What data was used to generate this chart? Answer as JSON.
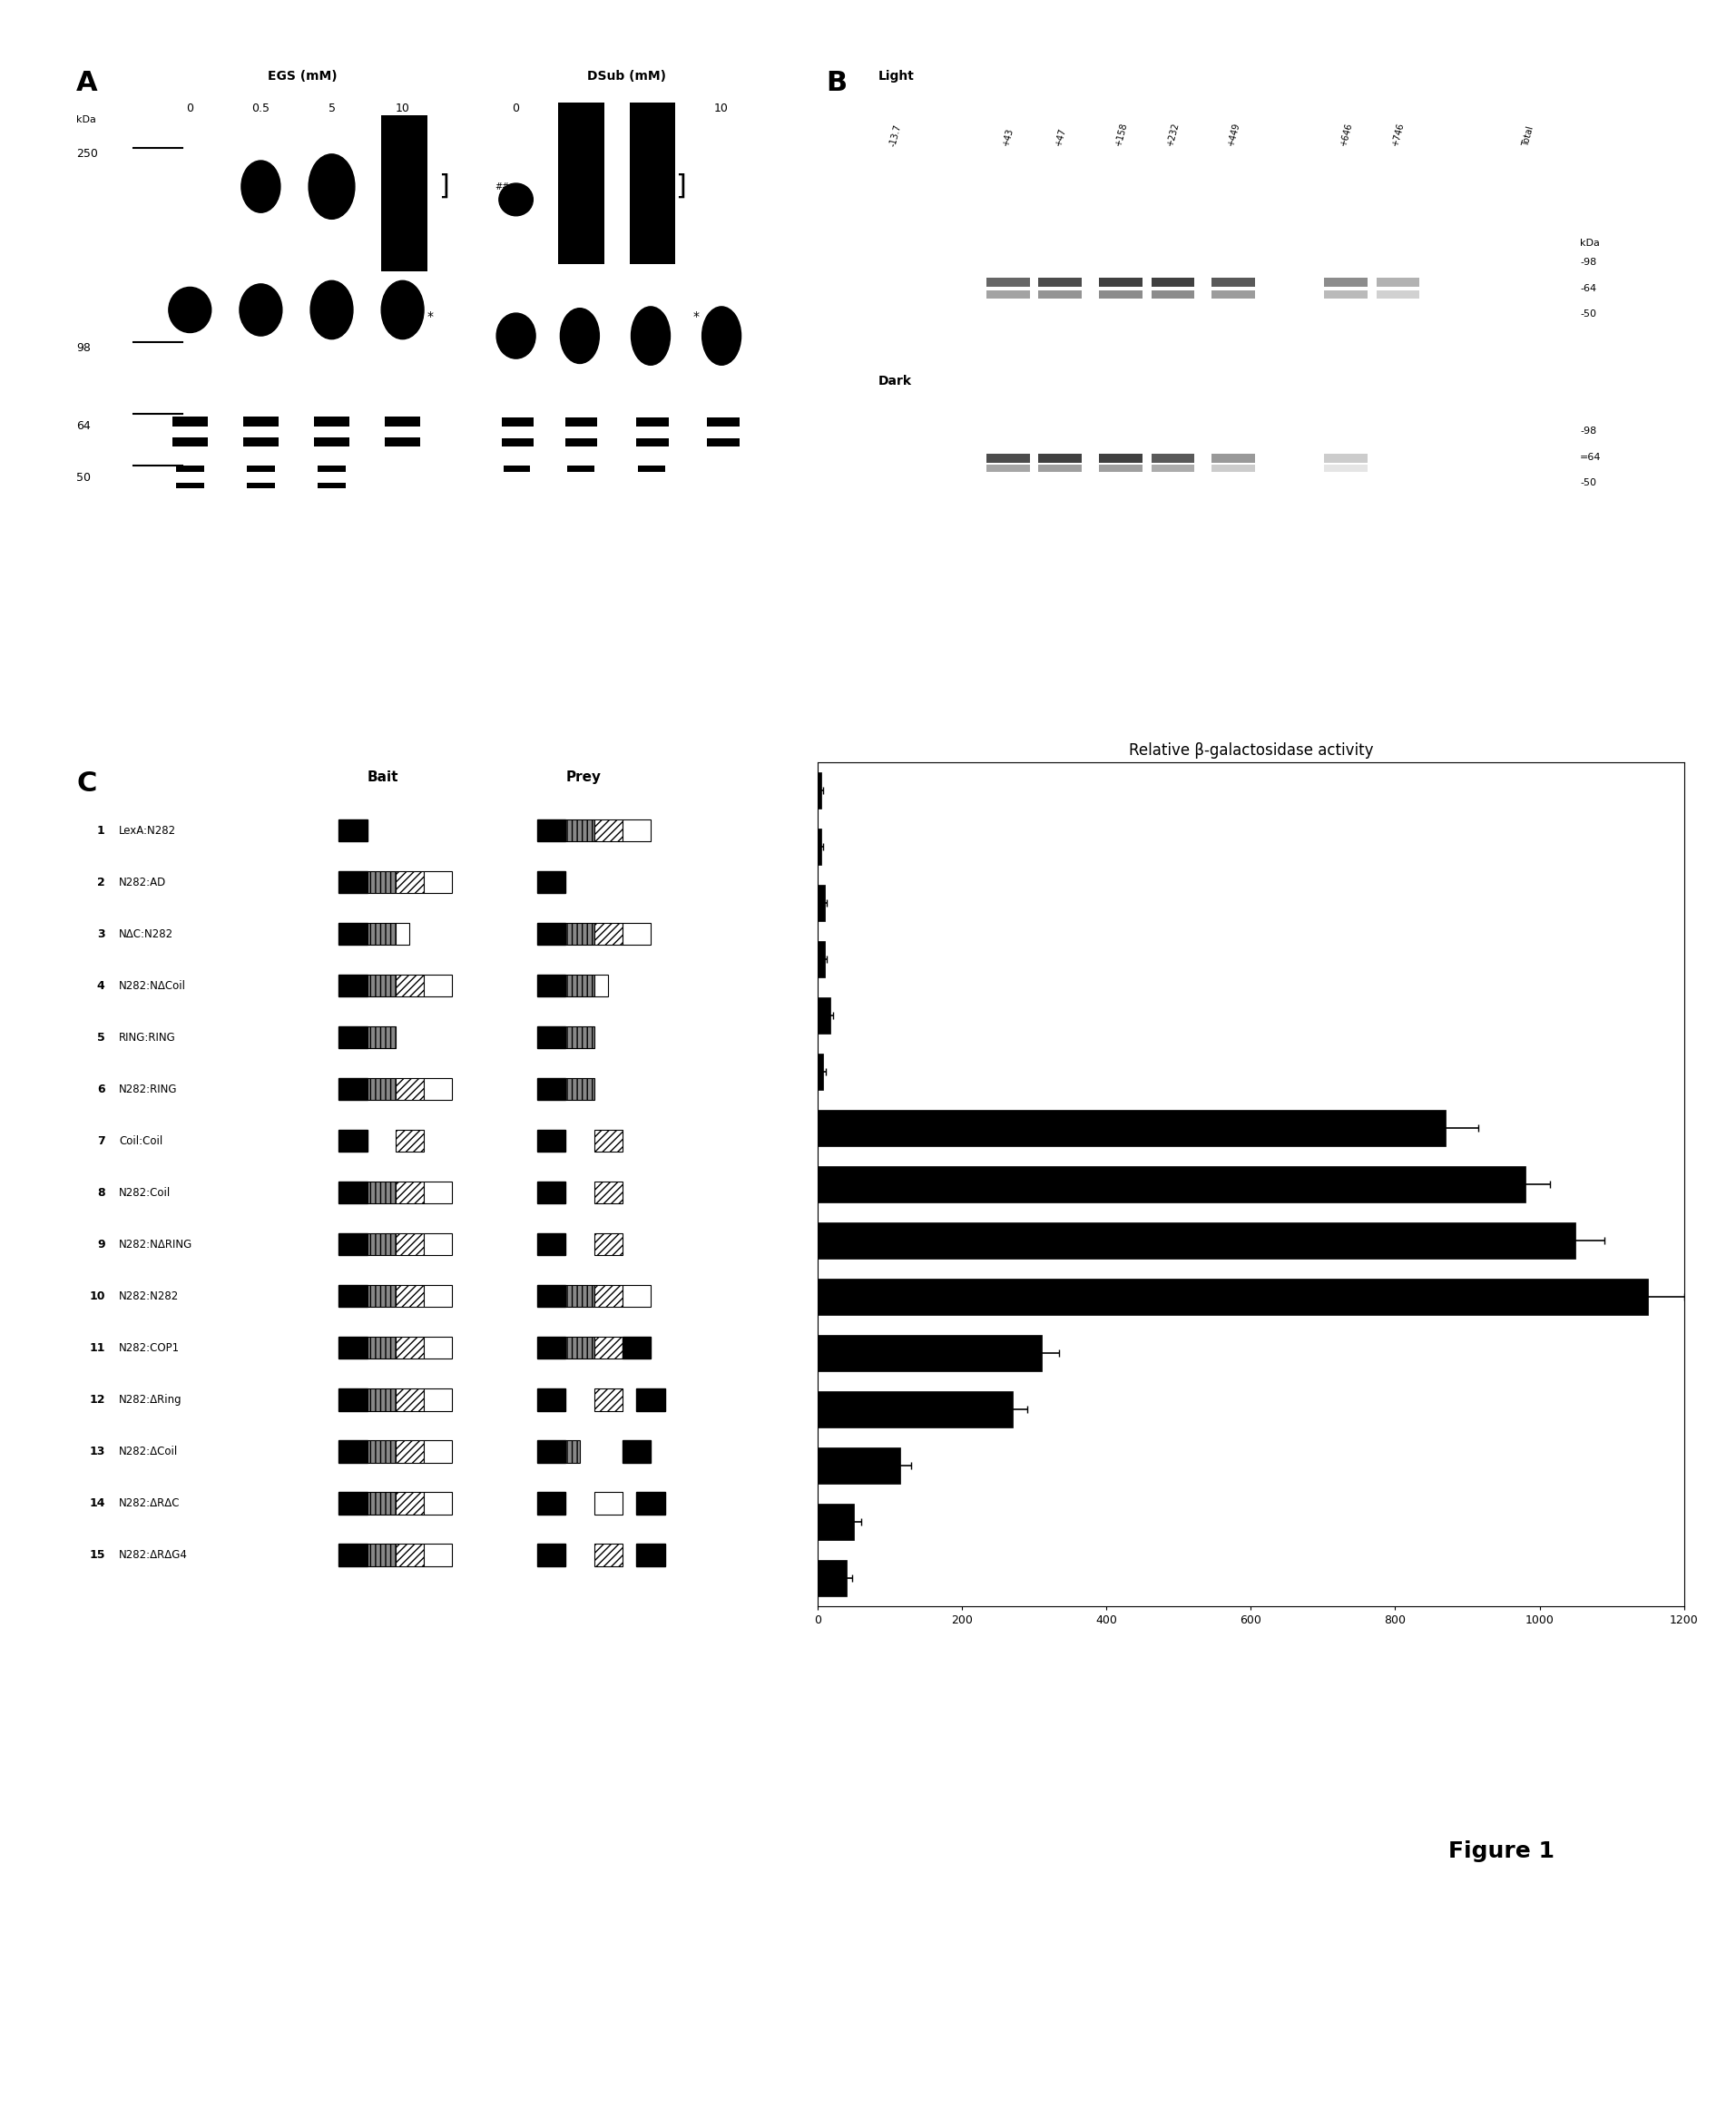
{
  "title": "Figure 1",
  "panel_C_rows": [
    {
      "num": 1,
      "label": "LexA:N282",
      "value": 5,
      "err": 2
    },
    {
      "num": 2,
      "label": "N282:AD",
      "value": 5,
      "err": 2
    },
    {
      "num": 3,
      "label": "NΔC:N282",
      "value": 10,
      "err": 3
    },
    {
      "num": 4,
      "label": "N282:NΔCoil",
      "value": 10,
      "err": 3
    },
    {
      "num": 5,
      "label": "RING:RING",
      "value": 18,
      "err": 4
    },
    {
      "num": 6,
      "label": "N282:RING",
      "value": 8,
      "err": 3
    },
    {
      "num": 7,
      "label": "Coil:Coil",
      "value": 870,
      "err": 45
    },
    {
      "num": 8,
      "label": "N282:Coil",
      "value": 980,
      "err": 35
    },
    {
      "num": 9,
      "label": "N282:NΔRING",
      "value": 1050,
      "err": 40
    },
    {
      "num": 10,
      "label": "N282:N282",
      "value": 1150,
      "err": 50
    },
    {
      "num": 11,
      "label": "N282:COP1",
      "value": 310,
      "err": 25
    },
    {
      "num": 12,
      "label": "N282:ΔRing",
      "value": 270,
      "err": 20
    },
    {
      "num": 13,
      "label": "N282:ΔCoil",
      "value": 115,
      "err": 15
    },
    {
      "num": 14,
      "label": "N282:ΔRΔC",
      "value": 50,
      "err": 10
    },
    {
      "num": 15,
      "label": "N282:ΔRΔG4",
      "value": 40,
      "err": 8
    }
  ],
  "bar_color": "#000000",
  "axis_title": "Relative β-galactosidase activity",
  "xlim": [
    0,
    1200
  ],
  "xticks": [
    0,
    200,
    400,
    600,
    800,
    1000,
    1200
  ],
  "background": "#ffffff"
}
